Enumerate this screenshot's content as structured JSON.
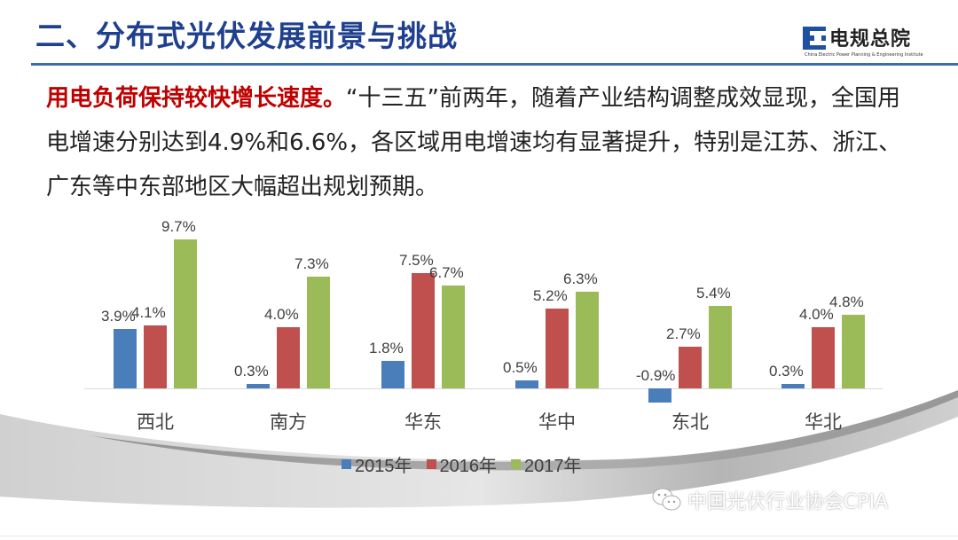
{
  "header": {
    "title": "二、分布式光伏发展前景与挑战",
    "logo_name": "电规总院",
    "logo_subtitle": "China Electric Power Planning & Engineering Institute"
  },
  "body": {
    "highlight": "用电负荷保持较快增长速度。",
    "text": "“十三五”前两年，随着产业结构调整成效显现，全国用电增速分别达到4.9%和6.6%，各区域用电增速均有显著提升，特别是江苏、浙江、广东等中东部地区大幅超出规划预期。"
  },
  "colors": {
    "s2015": "#4a7ebb",
    "s2016": "#c0504d",
    "s2017": "#9bbb59",
    "title": "#1f3f8f",
    "highlight": "#c00000"
  },
  "chart_data": {
    "type": "bar",
    "title": "",
    "xlabel": "",
    "ylabel": "",
    "categories": [
      "西北",
      "南方",
      "华东",
      "华中",
      "东北",
      "华北"
    ],
    "series": [
      {
        "name": "2015年",
        "values": [
          3.9,
          0.3,
          1.8,
          0.5,
          -0.9,
          0.3
        ],
        "labels": [
          "3.9%",
          "0.3%",
          "1.8%",
          "0.5%",
          "-0.9%",
          "0.3%"
        ]
      },
      {
        "name": "2016年",
        "values": [
          4.1,
          4.0,
          7.5,
          5.2,
          2.7,
          4.0
        ],
        "labels": [
          "4.1%",
          "4.0%",
          "7.5%",
          "5.2%",
          "2.7%",
          "4.0%"
        ]
      },
      {
        "name": "2017年",
        "values": [
          9.7,
          7.3,
          6.7,
          6.3,
          5.4,
          4.8
        ],
        "labels": [
          "9.7%",
          "7.3%",
          "6.7%",
          "6.3%",
          "5.4%",
          "4.8%"
        ]
      }
    ],
    "ylim": [
      -1.5,
      10
    ],
    "grid": false,
    "legend_position": "bottom",
    "units": "%"
  },
  "legend": [
    "2015年",
    "2016年",
    "2017年"
  ],
  "watermark": "中国光伏行业协会CPIA"
}
